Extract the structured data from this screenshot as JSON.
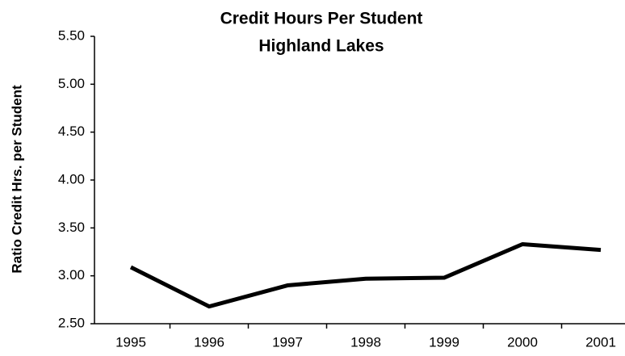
{
  "chart_data": {
    "type": "line",
    "title": "Credit Hours Per Student",
    "subtitle": "Highland Lakes",
    "y_label": "Ratio Credit Hrs. per Student",
    "categories": [
      "1995",
      "1996",
      "1997",
      "1998",
      "1999",
      "2000",
      "2001"
    ],
    "series": [
      {
        "name": "Credit Hours Per Student",
        "color": "#000000",
        "values": [
          3.09,
          2.68,
          2.9,
          2.97,
          2.98,
          3.33,
          3.27
        ]
      }
    ],
    "ylim": [
      2.5,
      5.5
    ],
    "yticks": [
      {
        "value": 2.5,
        "label": "2.50"
      },
      {
        "value": 3,
        "label": "3.00"
      },
      {
        "value": 3.5,
        "label": "3.50"
      },
      {
        "value": 4,
        "label": "4.00"
      },
      {
        "value": 4.5,
        "label": "4.50"
      },
      {
        "value": 5,
        "label": "5.00"
      },
      {
        "value": 5.5,
        "label": "5.50"
      }
    ],
    "grid": false
  }
}
